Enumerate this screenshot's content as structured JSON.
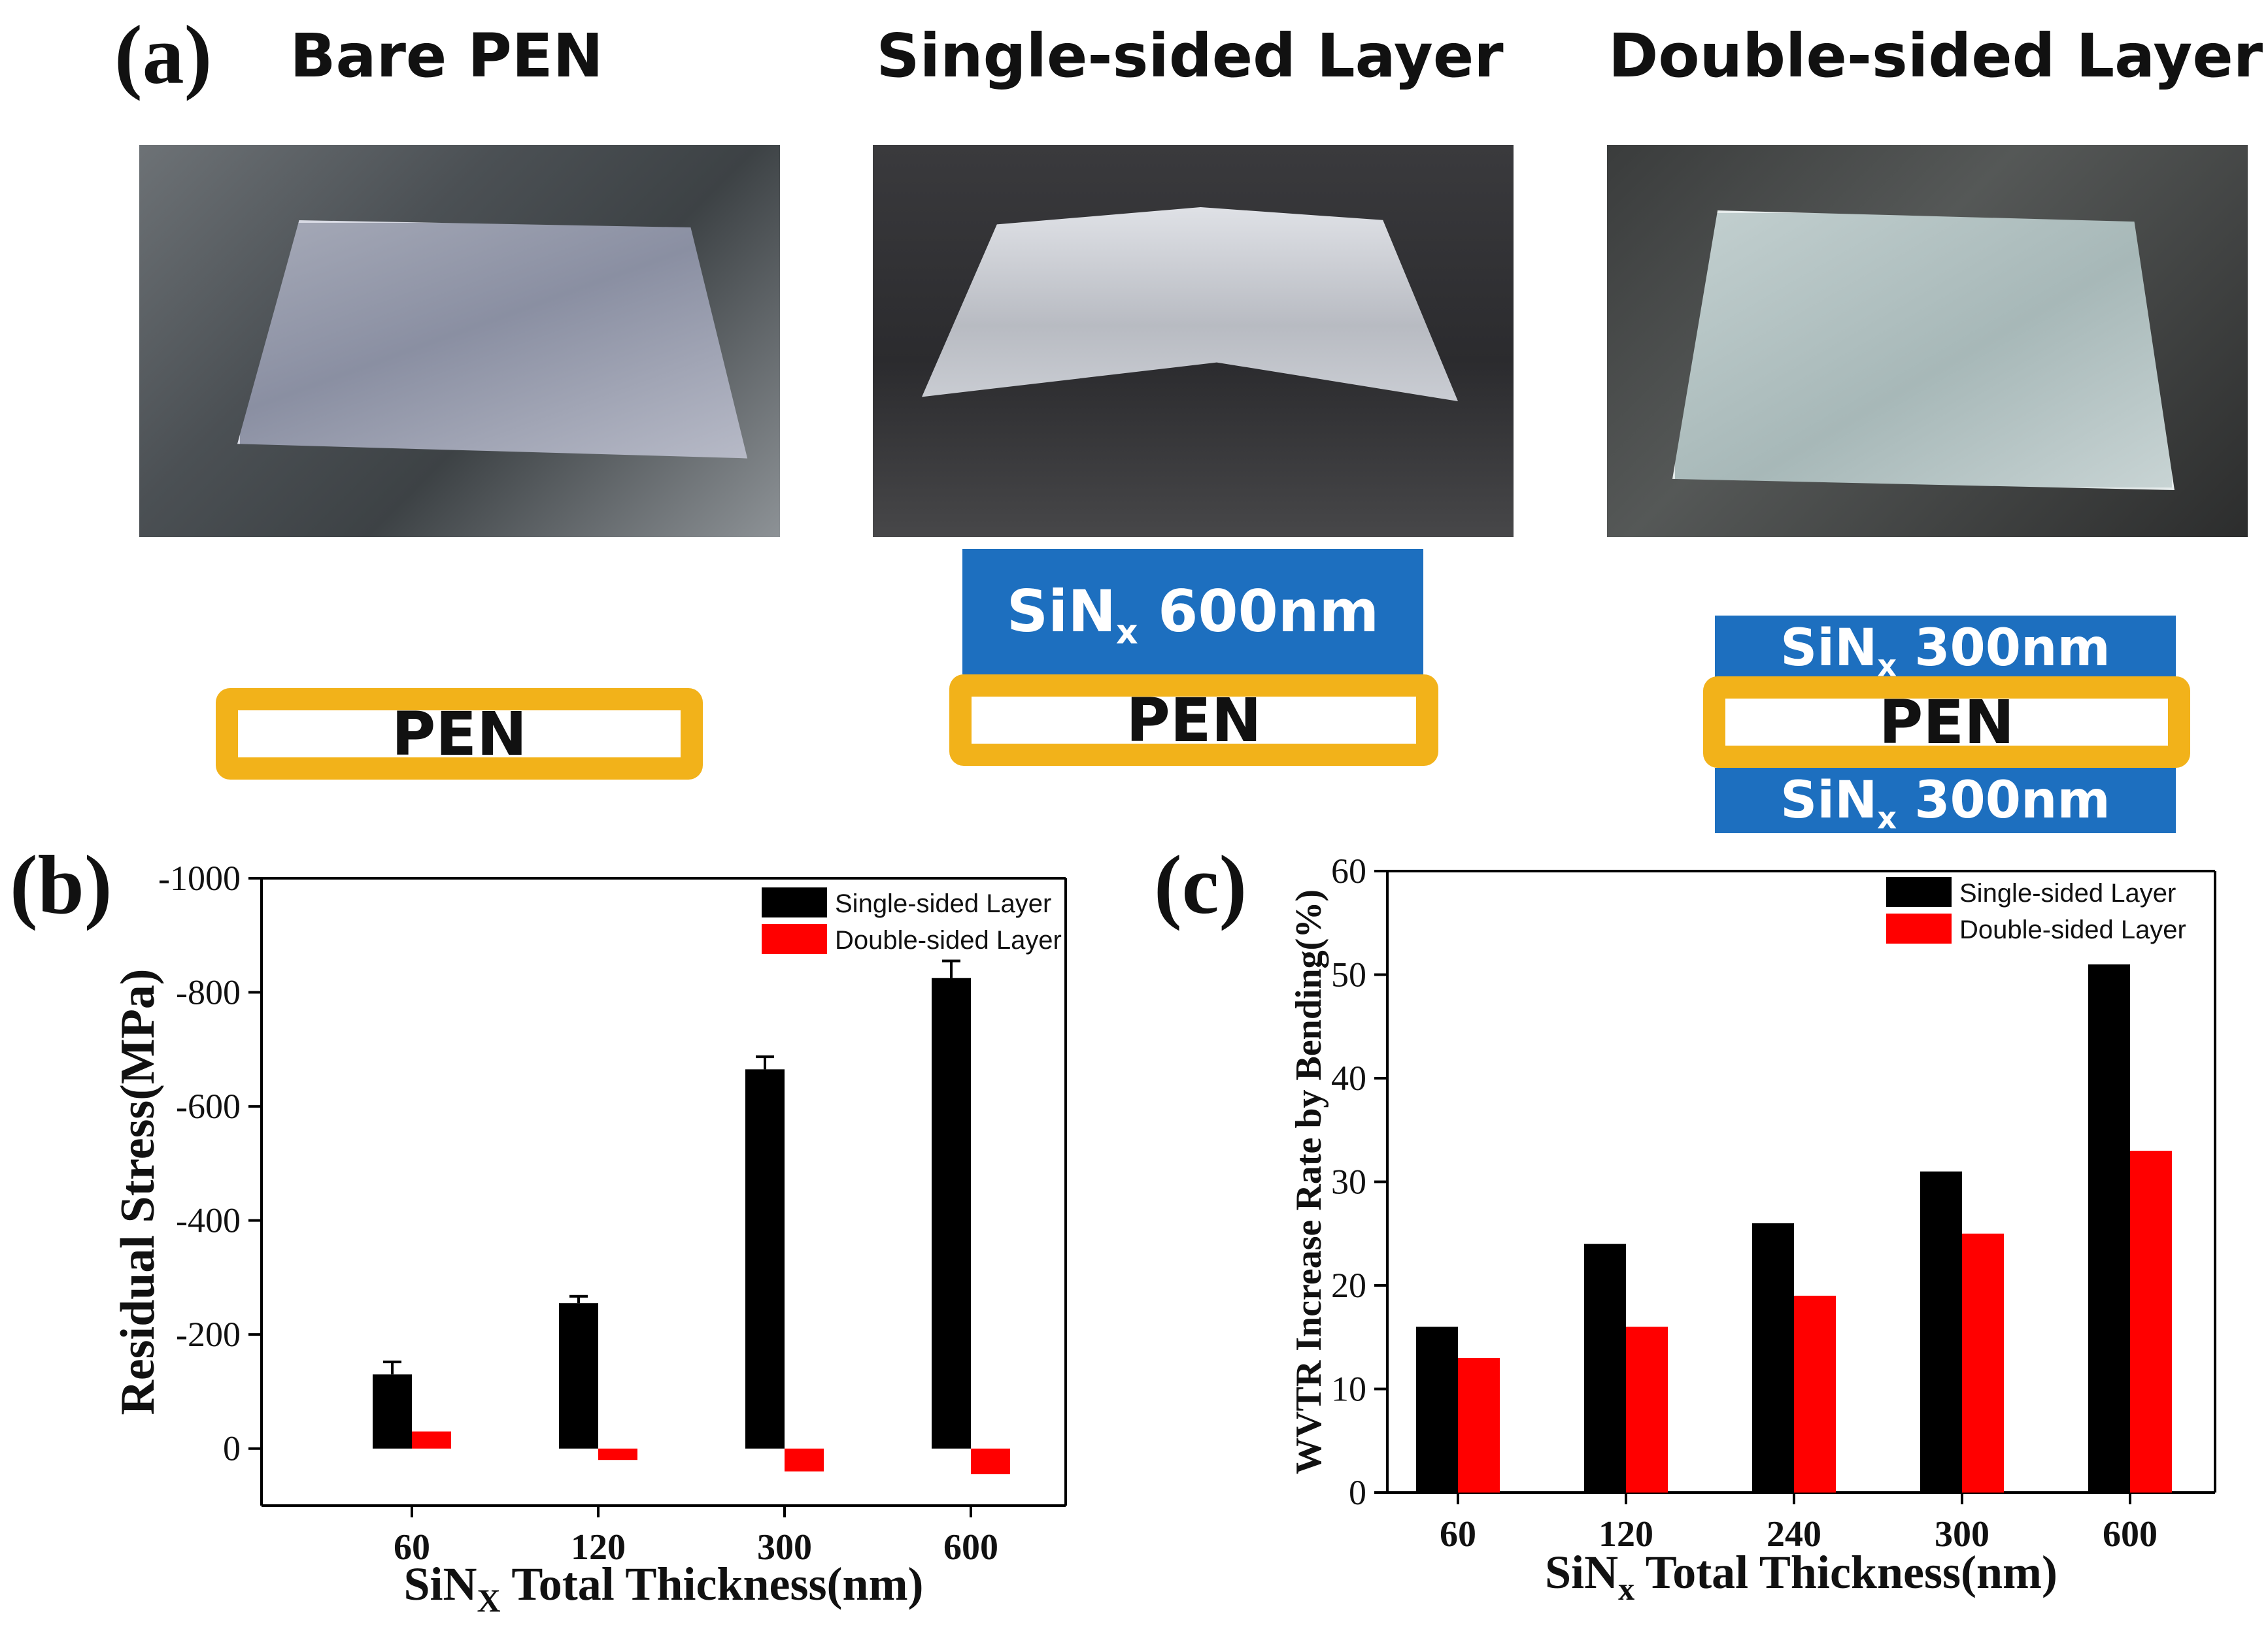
{
  "panel_a": {
    "label": "(a)",
    "columns": [
      {
        "title": "Bare PEN",
        "photo": "bare-pen-photo",
        "layers": [
          "PEN"
        ]
      },
      {
        "title": "Single-sided Layer",
        "photo": "single-sided-photo",
        "layers": [
          "SiNx 600nm",
          "PEN"
        ]
      },
      {
        "title": "Double-sided Layer",
        "photo": "double-sided-photo",
        "layers": [
          "SiNx 300nm",
          "PEN",
          "SiNx 300nm"
        ]
      }
    ],
    "stack": {
      "pen": "PEN",
      "sin_main": "SiN",
      "sin_sub": "x",
      "single_thickness": "600nm",
      "double_thickness": "300nm"
    }
  },
  "chart_data": [
    {
      "panel": "(b)",
      "type": "bar",
      "categories": [
        "60",
        "120",
        "300",
        "600"
      ],
      "series": [
        {
          "name": "Single-sided Layer",
          "color": "#000000",
          "values": [
            -130,
            -255,
            -665,
            -825
          ],
          "errors": [
            22,
            12,
            22,
            30
          ]
        },
        {
          "name": "Double-sided Layer",
          "color": "#ff0000",
          "values": [
            -30,
            20,
            40,
            45
          ]
        }
      ],
      "xlabel_main": "SiN",
      "xlabel_sub": "X",
      "xlabel_rest": " Total Thickness(nm)",
      "ylabel": "Residual Stress(MPa)",
      "ylim": [
        100,
        -1000
      ],
      "yticks": [
        0,
        -200,
        -400,
        -600,
        -800,
        -1000
      ],
      "ytick_labels": [
        "0",
        "-200",
        "-400",
        "-600",
        "-800",
        "-1000"
      ],
      "legend_position": "top-right"
    },
    {
      "panel": "(c)",
      "type": "bar",
      "categories": [
        "60",
        "120",
        "240",
        "300",
        "600"
      ],
      "series": [
        {
          "name": "Single-sided Layer",
          "color": "#000000",
          "values": [
            16,
            24,
            26,
            31,
            51
          ]
        },
        {
          "name": "Double-sided Layer",
          "color": "#ff0000",
          "values": [
            13,
            16,
            19,
            25,
            33
          ]
        }
      ],
      "xlabel_main": "SiN",
      "xlabel_sub": "x",
      "xlabel_rest": " Total Thickness(nm)",
      "ylabel": "WVTR Increase Rate by Bending(%)",
      "ylim": [
        0,
        60
      ],
      "yticks": [
        0,
        10,
        20,
        30,
        40,
        50,
        60
      ],
      "ytick_labels": [
        "0",
        "10",
        "20",
        "30",
        "40",
        "50",
        "60"
      ],
      "legend_position": "top-right"
    }
  ]
}
